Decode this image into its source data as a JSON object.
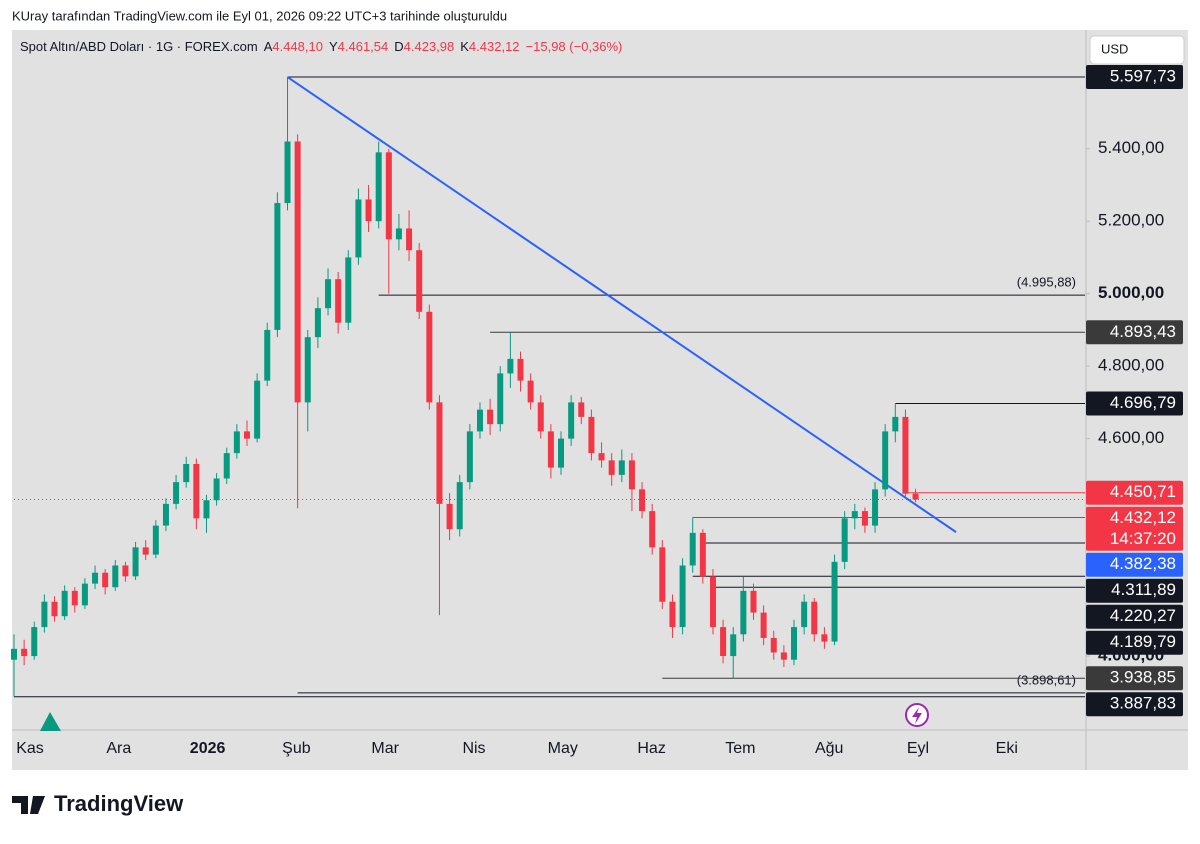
{
  "header": {
    "caption": "KUray tarafından TradingView.com ile Eyl 01, 2026 09:22 UTC+3 tarihinde oluşturuldu",
    "brand": "TradingView"
  },
  "chart_data": {
    "type": "candlestick",
    "title": "Spot Altın/ABD Doları · 1G · FOREX.com",
    "ohlc_legend": [
      {
        "key": "A",
        "value": "4.448,10"
      },
      {
        "key": "Y",
        "value": "4.461,54"
      },
      {
        "key": "D",
        "value": "4.423,98"
      },
      {
        "key": "K",
        "value": "4.432,12"
      }
    ],
    "change": "−15,98 (−0,36%)",
    "currency": "USD",
    "up_color": "#089981",
    "down_color": "#f23645",
    "ylim": [
      3796,
      5700
    ],
    "yticks": [
      {
        "value": 5400,
        "label": "5.400,00"
      },
      {
        "value": 5200,
        "label": "5.200,00"
      },
      {
        "value": 5000,
        "label": "5.000,00"
      },
      {
        "value": 4800,
        "label": "4.800,00"
      },
      {
        "value": 4600,
        "label": "4.600,00"
      },
      {
        "value": 4000,
        "label": "4.000,00"
      }
    ],
    "yticks_bold": [
      2,
      5
    ],
    "x_labels": [
      "Kas",
      "Ara",
      "2026",
      "Şub",
      "Mar",
      "Nis",
      "May",
      "Haz",
      "Tem",
      "Ağu",
      "Eyl",
      "Eki"
    ],
    "x_bold": [
      2
    ],
    "ohlc": [
      [
        3990,
        4060,
        3888,
        4020
      ],
      [
        4020,
        4045,
        3975,
        4000
      ],
      [
        4000,
        4095,
        3990,
        4080
      ],
      [
        4080,
        4170,
        4065,
        4150
      ],
      [
        4150,
        4165,
        4095,
        4110
      ],
      [
        4110,
        4195,
        4100,
        4180
      ],
      [
        4180,
        4190,
        4120,
        4140
      ],
      [
        4140,
        4215,
        4130,
        4200
      ],
      [
        4200,
        4250,
        4185,
        4230
      ],
      [
        4230,
        4240,
        4170,
        4190
      ],
      [
        4190,
        4265,
        4180,
        4250
      ],
      [
        4250,
        4260,
        4205,
        4220
      ],
      [
        4220,
        4315,
        4210,
        4300
      ],
      [
        4300,
        4320,
        4265,
        4280
      ],
      [
        4280,
        4375,
        4270,
        4360
      ],
      [
        4360,
        4435,
        4345,
        4420
      ],
      [
        4420,
        4500,
        4405,
        4480
      ],
      [
        4480,
        4550,
        4465,
        4530
      ],
      [
        4530,
        4545,
        4350,
        4380
      ],
      [
        4380,
        4445,
        4340,
        4430
      ],
      [
        4430,
        4505,
        4415,
        4490
      ],
      [
        4490,
        4575,
        4475,
        4560
      ],
      [
        4560,
        4640,
        4545,
        4620
      ],
      [
        4620,
        4650,
        4580,
        4600
      ],
      [
        4600,
        4780,
        4590,
        4760
      ],
      [
        4760,
        4920,
        4745,
        4900
      ],
      [
        4900,
        5280,
        4880,
        5250
      ],
      [
        5250,
        5597.73,
        5230,
        5420
      ],
      [
        5420,
        5440,
        4408,
        4700
      ],
      [
        4700,
        4900,
        4620,
        4880
      ],
      [
        4880,
        4990,
        4850,
        4960
      ],
      [
        4960,
        5070,
        4940,
        5040
      ],
      [
        5040,
        5060,
        4890,
        4920
      ],
      [
        4920,
        5120,
        4900,
        5100
      ],
      [
        5100,
        5290,
        5080,
        5260
      ],
      [
        5260,
        5300,
        5170,
        5200
      ],
      [
        5200,
        5420,
        5180,
        5390
      ],
      [
        5390,
        5400,
        5000,
        5150
      ],
      [
        5150,
        5220,
        5120,
        5180
      ],
      [
        5180,
        5230,
        5090,
        5120
      ],
      [
        5120,
        5140,
        4930,
        4950
      ],
      [
        4950,
        4970,
        4680,
        4700
      ],
      [
        4700,
        4720,
        4113,
        4420
      ],
      [
        4420,
        4450,
        4320,
        4350
      ],
      [
        4350,
        4500,
        4330,
        4480
      ],
      [
        4480,
        4640,
        4460,
        4620
      ],
      [
        4620,
        4700,
        4600,
        4680
      ],
      [
        4680,
        4710,
        4610,
        4640
      ],
      [
        4640,
        4800,
        4620,
        4780
      ],
      [
        4780,
        4893.43,
        4740,
        4820
      ],
      [
        4820,
        4840,
        4730,
        4760
      ],
      [
        4760,
        4780,
        4680,
        4700
      ],
      [
        4700,
        4720,
        4600,
        4620
      ],
      [
        4620,
        4640,
        4490,
        4520
      ],
      [
        4520,
        4620,
        4500,
        4600
      ],
      [
        4600,
        4720,
        4580,
        4700
      ],
      [
        4700,
        4715,
        4640,
        4660
      ],
      [
        4660,
        4680,
        4540,
        4560
      ],
      [
        4560,
        4590,
        4520,
        4540
      ],
      [
        4540,
        4560,
        4470,
        4500
      ],
      [
        4500,
        4570,
        4480,
        4540
      ],
      [
        4540,
        4560,
        4400,
        4460
      ],
      [
        4460,
        4480,
        4380,
        4400
      ],
      [
        4400,
        4420,
        4280,
        4300
      ],
      [
        4300,
        4320,
        4130,
        4150
      ],
      [
        4150,
        4170,
        4050,
        4080
      ],
      [
        4080,
        4270,
        4060,
        4250
      ],
      [
        4250,
        4382.38,
        4230,
        4340
      ],
      [
        4340,
        4350,
        4200,
        4220
      ],
      [
        4220,
        4240,
        4060,
        4080
      ],
      [
        4080,
        4100,
        3980,
        4000
      ],
      [
        4000,
        4080,
        3938.85,
        4060
      ],
      [
        4060,
        4220,
        4040,
        4180
      ],
      [
        4180,
        4200,
        4100,
        4120
      ],
      [
        4120,
        4140,
        4030,
        4050
      ],
      [
        4050,
        4070,
        3990,
        4010
      ],
      [
        4010,
        4030,
        3970,
        3990
      ],
      [
        3990,
        4100,
        3975,
        4080
      ],
      [
        4080,
        4170,
        4060,
        4150
      ],
      [
        4150,
        4160,
        4040,
        4060
      ],
      [
        4060,
        4080,
        4020,
        4040
      ],
      [
        4040,
        4280,
        4030,
        4260
      ],
      [
        4260,
        4400,
        4240,
        4380
      ],
      [
        4380,
        4420,
        4350,
        4400
      ],
      [
        4400,
        4410,
        4340,
        4360
      ],
      [
        4360,
        4480,
        4340,
        4460
      ],
      [
        4460,
        4640,
        4440,
        4620
      ],
      [
        4620,
        4696.79,
        4590,
        4660
      ],
      [
        4660,
        4680,
        4440,
        4448.1
      ],
      [
        4448.1,
        4461.54,
        4423.98,
        4432.12
      ]
    ],
    "trendline": {
      "color": "#2962ff",
      "from": [
        27,
        5597.73
      ],
      "to": [
        93,
        4342
      ]
    },
    "levels": [
      {
        "value": 5597.73,
        "label": "5.597,73",
        "color": "#131722",
        "start": 27
      },
      {
        "value": 4893.43,
        "label": "4.893,43",
        "color": "#3a3a3a",
        "start": 47
      },
      {
        "value": 4696.79,
        "label": "4.696,79",
        "color": "#131722",
        "start": 87
      },
      {
        "value": 4450.71,
        "label": "4.450,71",
        "color": "#f23645",
        "start": 88
      },
      {
        "value": 4432.12,
        "label": "4.432,12",
        "color": "#f23645",
        "start": 0,
        "dotted": true,
        "countdown": "14:37:20"
      },
      {
        "value": 4382.38,
        "label": "4.382,38",
        "color": "#2962ff",
        "start": 67
      },
      {
        "value": 4311.89,
        "label": "4.311,89",
        "color": "#131722",
        "start": 68
      },
      {
        "value": 4220.27,
        "label": "4.220,27",
        "color": "#131722",
        "start": 67
      },
      {
        "value": 4189.79,
        "label": "4.189,79",
        "color": "#131722",
        "start": 69
      },
      {
        "value": 3938.85,
        "label": "3.938,85",
        "color": "#3a3a3a",
        "start": 64
      },
      {
        "value": 3887.83,
        "label": "3.887,83",
        "color": "#131722",
        "start": 0
      }
    ],
    "notes": [
      {
        "value": 4995.88,
        "label": "(4.995,88)",
        "start": 36
      },
      {
        "value": 3898.61,
        "label": "(3.898,61)",
        "start": 28
      }
    ]
  }
}
